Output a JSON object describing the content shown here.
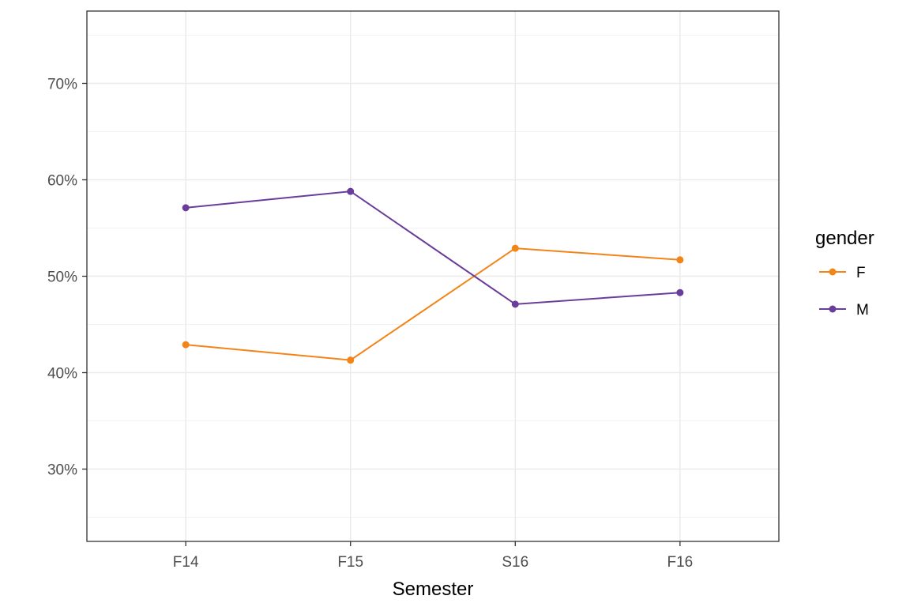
{
  "chart_data": {
    "type": "line",
    "categories": [
      "F14",
      "F15",
      "S16",
      "F16"
    ],
    "series": [
      {
        "name": "F",
        "color": "#f28418",
        "values": [
          0.429,
          0.413,
          0.529,
          0.517
        ]
      },
      {
        "name": "M",
        "color": "#6a3d9a",
        "values": [
          0.571,
          0.588,
          0.471,
          0.483
        ]
      }
    ],
    "ylim": [
      0.225,
      0.775
    ],
    "yticks": [
      0.3,
      0.4,
      0.5,
      0.6,
      0.7
    ],
    "ytick_labels": [
      "30%",
      "40%",
      "50%",
      "60%",
      "70%"
    ],
    "xlabel": "Semester",
    "ylabel": "",
    "legend": {
      "title": "gender",
      "position": "right",
      "entries": [
        "F",
        "M"
      ]
    },
    "grid": true
  }
}
